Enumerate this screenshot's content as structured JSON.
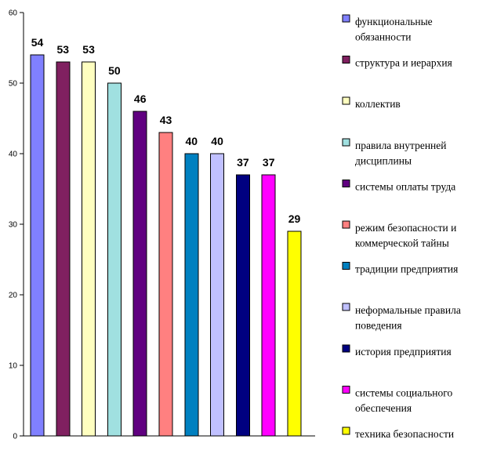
{
  "chart_data": {
    "type": "bar",
    "title": "",
    "xlabel": "",
    "ylabel": "",
    "ylim": [
      0,
      60
    ],
    "yticks": [
      0,
      10,
      20,
      30,
      40,
      50,
      60
    ],
    "grid": false,
    "legend_position": "right",
    "categories": [
      "функциональные обязанности",
      "структура и иерархия",
      "коллектив",
      "правила внутренней дисциплины",
      "системы оплаты труда",
      "режим безопасности и коммерческой тайны",
      "традиции предприятия",
      "неформальные правила поведения",
      "история предприятия",
      "системы социального обеспечения",
      "техника безопасности"
    ],
    "values": [
      54,
      53,
      53,
      50,
      46,
      43,
      40,
      40,
      37,
      37,
      29
    ],
    "colors": [
      "#8080FF",
      "#802060",
      "#FFFFC0",
      "#A0E0E0",
      "#600080",
      "#FF8080",
      "#0080C0",
      "#C0C0FF",
      "#000080",
      "#FF00FF",
      "#FFFF00"
    ],
    "legend": [
      {
        "lines": [
          "функциональные",
          "обязанности"
        ]
      },
      {
        "lines": [
          "структура и иерархия"
        ]
      },
      {
        "lines": [
          "коллектив"
        ]
      },
      {
        "lines": [
          "правила внутренней",
          "дисциплины"
        ]
      },
      {
        "lines": [
          "системы оплаты труда"
        ]
      },
      {
        "lines": [
          "режим безопасности и",
          "коммерческой тайны"
        ]
      },
      {
        "lines": [
          "традиции предприятия"
        ]
      },
      {
        "lines": [
          "неформальные правила",
          "поведения"
        ]
      },
      {
        "lines": [
          "история предприятия"
        ]
      },
      {
        "lines": [
          "системы социального",
          "обеспечения"
        ]
      },
      {
        "lines": [
          "техника безопасности"
        ]
      }
    ]
  }
}
